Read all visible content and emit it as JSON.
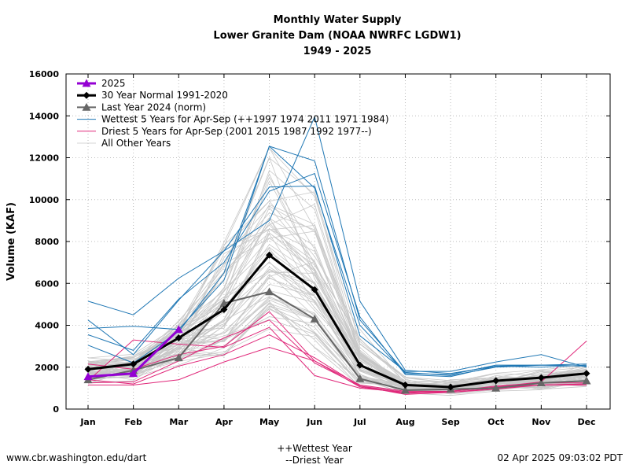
{
  "chart_data": {
    "type": "line",
    "title_lines": [
      "Monthly Water Supply",
      "Lower Granite Dam (NOAA NWRFC LGDW1)",
      "1949 - 2025"
    ],
    "xlabel": "",
    "ylabel": "Volume (KAF)",
    "ylim": [
      0,
      16000
    ],
    "yticks": [
      "0",
      "2000",
      "4000",
      "6000",
      "8000",
      "10000",
      "12000",
      "14000",
      "16000"
    ],
    "categories": [
      "Jan",
      "Feb",
      "Mar",
      "Apr",
      "May",
      "Jun",
      "Jul",
      "Aug",
      "Sep",
      "Oct",
      "Nov",
      "Dec"
    ],
    "grid": true,
    "legend_position": "top-left",
    "series": [
      {
        "name": "2025",
        "role": "current",
        "color": "#9400d3",
        "values": [
          1550,
          1700,
          3800,
          null,
          null,
          null,
          null,
          null,
          null,
          null,
          null,
          null
        ]
      },
      {
        "name": "30 Year Normal 1991-2020",
        "role": "normal",
        "color": "#000000",
        "values": [
          1900,
          2150,
          3400,
          4750,
          7350,
          5700,
          2100,
          1150,
          1050,
          1350,
          1500,
          1700
        ]
      },
      {
        "name": "Last Year 2024 (norm)",
        "role": "last",
        "color": "#666666",
        "values": [
          1400,
          1850,
          2450,
          5050,
          5600,
          4300,
          1450,
          900,
          950,
          1000,
          1250,
          1350
        ]
      },
      {
        "name": "Wettest 5 Years for Apr-Sep (++1997 1974 2011 1971 1984)",
        "role": "wet",
        "color": "#1f77b4",
        "lines": [
          [
            5150,
            4500,
            6250,
            7550,
            10600,
            10650,
            3500,
            1800,
            1800,
            2250,
            2600,
            2000
          ],
          [
            3850,
            3950,
            3800,
            6150,
            12550,
            10550,
            4000,
            1700,
            1650,
            2100,
            2100,
            2050
          ],
          [
            3550,
            2800,
            5250,
            7000,
            10400,
            11250,
            4400,
            1650,
            1550,
            2050,
            2000,
            2100
          ],
          [
            4250,
            2600,
            5200,
            7550,
            9000,
            13950,
            5150,
            1850,
            1700,
            2050,
            2100,
            2150
          ],
          [
            3050,
            2200,
            3700,
            6500,
            12550,
            11850,
            4250,
            1750,
            1600,
            2000,
            2100,
            2050
          ]
        ]
      },
      {
        "name": "Driest 5 Years for Apr-Sep (2001 2015 1987 1992 1977--)",
        "role": "dry",
        "color": "#e0287a",
        "lines": [
          [
            1150,
            1150,
            1400,
            2250,
            2950,
            2300,
            1050,
            750,
            850,
            1050,
            1150,
            1150
          ],
          [
            1350,
            3300,
            3100,
            2950,
            3900,
            1600,
            1000,
            800,
            800,
            950,
            1150,
            1200
          ],
          [
            2150,
            1900,
            2600,
            3000,
            4650,
            2300,
            1150,
            850,
            850,
            1050,
            1300,
            3250
          ],
          [
            1250,
            1300,
            2300,
            3400,
            4250,
            2200,
            1100,
            700,
            800,
            1000,
            1150,
            1200
          ],
          [
            1400,
            1200,
            2050,
            2600,
            3550,
            2450,
            1100,
            800,
            850,
            1100,
            1250,
            1250
          ]
        ]
      },
      {
        "name": "All Other Years",
        "role": "other",
        "color": "#c8c8c8",
        "lines": []
      }
    ]
  },
  "footer": {
    "left": "www.cbr.washington.edu/dart",
    "center_line1": "++Wettest Year",
    "center_line2": "--Driest Year",
    "right": "02 Apr 2025 09:03:02 PDT"
  }
}
